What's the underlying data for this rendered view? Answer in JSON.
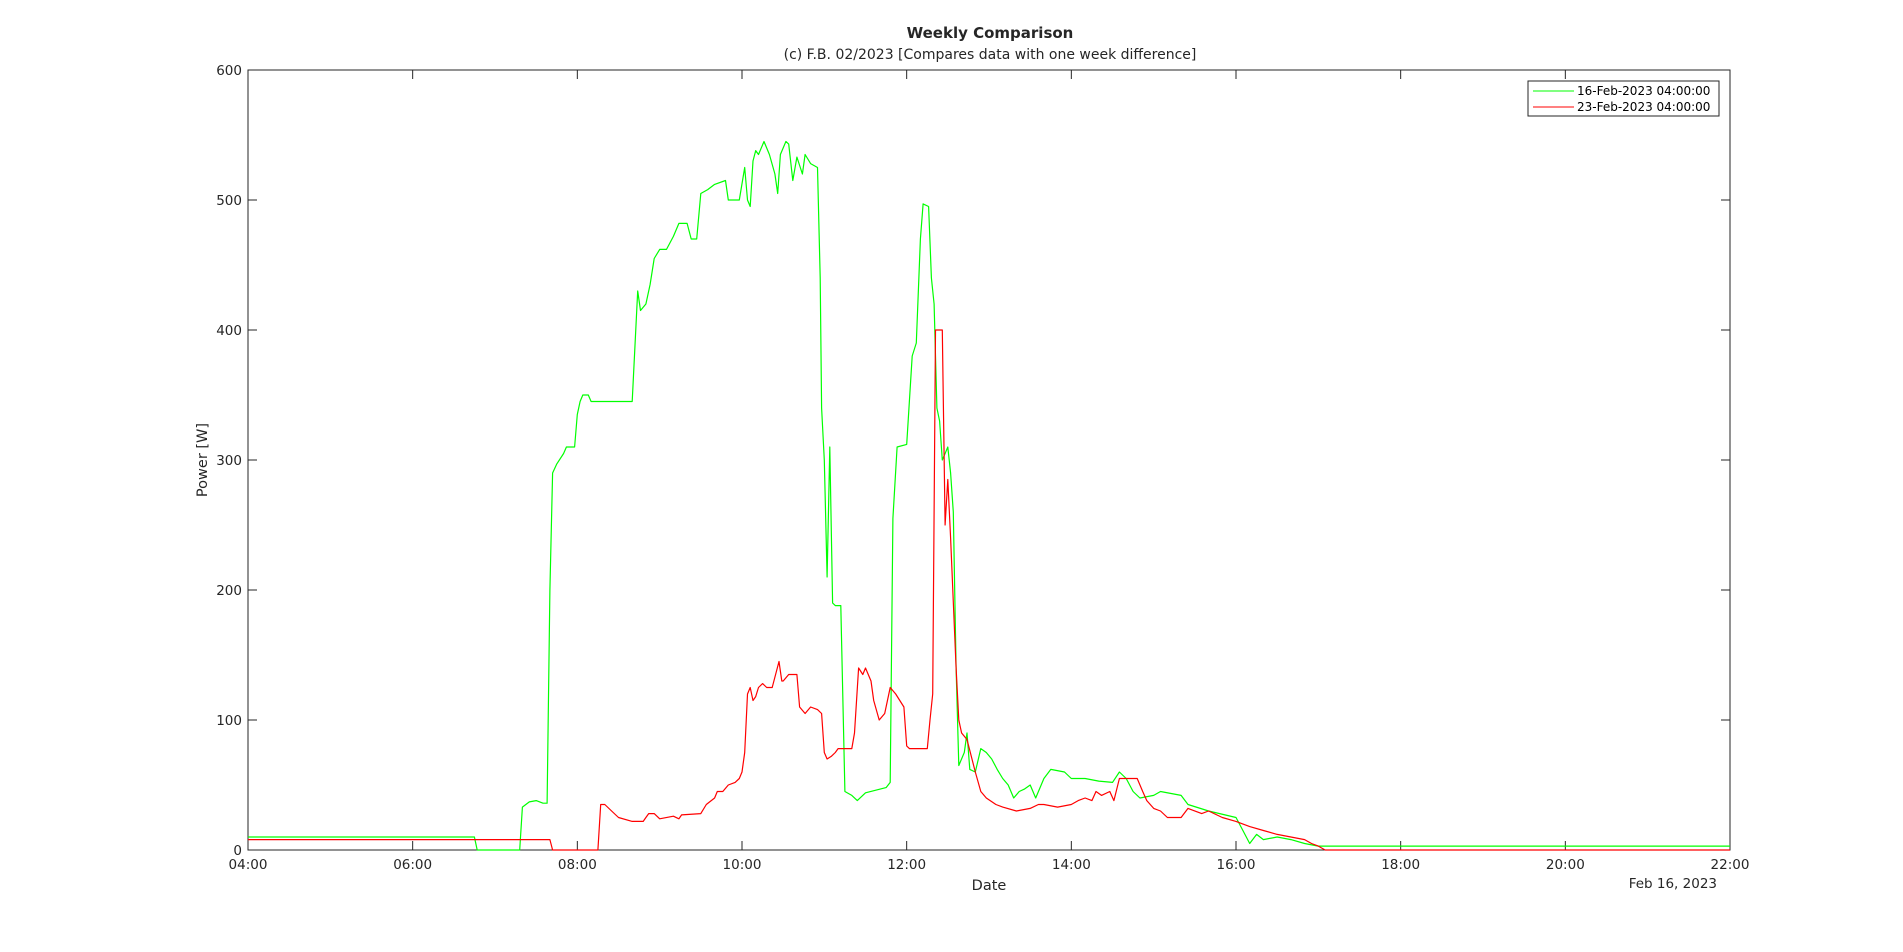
{
  "chart_data": {
    "type": "line",
    "title": "Weekly Comparison",
    "subtitle": "(c) F.B. 02/2023 [Compares data with one week difference]",
    "xlabel": "Date",
    "ylabel": "Power [W]",
    "date_label": "Feb 16, 2023",
    "xlim": [
      "04:00",
      "22:00"
    ],
    "ylim": [
      0,
      600
    ],
    "x_ticks": [
      "04:00",
      "06:00",
      "08:00",
      "10:00",
      "12:00",
      "14:00",
      "16:00",
      "18:00",
      "20:00",
      "22:00"
    ],
    "y_ticks": [
      0,
      100,
      200,
      300,
      400,
      500,
      600
    ],
    "grid": false,
    "legend_position": "top-right",
    "series": [
      {
        "name": "16-Feb-2023 04:00:00",
        "color": "#00ff00",
        "points": [
          [
            "04:00",
            10
          ],
          [
            "06:45",
            10
          ],
          [
            "06:47",
            0
          ],
          [
            "07:18",
            0
          ],
          [
            "07:20",
            33
          ],
          [
            "07:25",
            37
          ],
          [
            "07:30",
            38
          ],
          [
            "07:35",
            36
          ],
          [
            "07:38",
            36
          ],
          [
            "07:40",
            200
          ],
          [
            "07:42",
            290
          ],
          [
            "07:45",
            297
          ],
          [
            "07:50",
            305
          ],
          [
            "07:52",
            310
          ],
          [
            "07:58",
            310
          ],
          [
            "08:00",
            335
          ],
          [
            "08:02",
            345
          ],
          [
            "08:04",
            350
          ],
          [
            "08:08",
            350
          ],
          [
            "08:10",
            345
          ],
          [
            "08:40",
            345
          ],
          [
            "08:44",
            430
          ],
          [
            "08:46",
            415
          ],
          [
            "08:50",
            420
          ],
          [
            "08:53",
            435
          ],
          [
            "08:56",
            455
          ],
          [
            "09:00",
            462
          ],
          [
            "09:05",
            462
          ],
          [
            "09:10",
            472
          ],
          [
            "09:14",
            482
          ],
          [
            "09:20",
            482
          ],
          [
            "09:23",
            470
          ],
          [
            "09:27",
            470
          ],
          [
            "09:30",
            505
          ],
          [
            "09:35",
            508
          ],
          [
            "09:40",
            512
          ],
          [
            "09:48",
            515
          ],
          [
            "09:50",
            500
          ],
          [
            "09:58",
            500
          ],
          [
            "10:02",
            525
          ],
          [
            "10:04",
            500
          ],
          [
            "10:06",
            495
          ],
          [
            "10:08",
            530
          ],
          [
            "10:10",
            538
          ],
          [
            "10:12",
            535
          ],
          [
            "10:16",
            545
          ],
          [
            "10:20",
            535
          ],
          [
            "10:24",
            520
          ],
          [
            "10:26",
            505
          ],
          [
            "10:28",
            535
          ],
          [
            "10:32",
            545
          ],
          [
            "10:34",
            543
          ],
          [
            "10:37",
            515
          ],
          [
            "10:40",
            533
          ],
          [
            "10:44",
            520
          ],
          [
            "10:46",
            535
          ],
          [
            "10:50",
            528
          ],
          [
            "10:55",
            525
          ],
          [
            "10:57",
            440
          ],
          [
            "10:58",
            340
          ],
          [
            "11:00",
            300
          ],
          [
            "11:02",
            210
          ],
          [
            "11:04",
            310
          ],
          [
            "11:06",
            190
          ],
          [
            "11:08",
            188
          ],
          [
            "11:12",
            188
          ],
          [
            "11:15",
            45
          ],
          [
            "11:20",
            42
          ],
          [
            "11:24",
            38
          ],
          [
            "11:30",
            44
          ],
          [
            "11:45",
            48
          ],
          [
            "11:48",
            52
          ],
          [
            "11:50",
            255
          ],
          [
            "11:53",
            310
          ],
          [
            "12:00",
            312
          ],
          [
            "12:04",
            380
          ],
          [
            "12:07",
            390
          ],
          [
            "12:10",
            470
          ],
          [
            "12:12",
            497
          ],
          [
            "12:16",
            495
          ],
          [
            "12:18",
            440
          ],
          [
            "12:20",
            420
          ],
          [
            "12:22",
            340
          ],
          [
            "12:24",
            330
          ],
          [
            "12:26",
            300
          ],
          [
            "12:28",
            305
          ],
          [
            "12:30",
            310
          ],
          [
            "12:32",
            290
          ],
          [
            "12:34",
            260
          ],
          [
            "12:36",
            140
          ],
          [
            "12:38",
            65
          ],
          [
            "12:42",
            75
          ],
          [
            "12:44",
            90
          ],
          [
            "12:46",
            62
          ],
          [
            "12:50",
            60
          ],
          [
            "12:54",
            78
          ],
          [
            "12:58",
            75
          ],
          [
            "13:02",
            70
          ],
          [
            "13:06",
            62
          ],
          [
            "13:10",
            55
          ],
          [
            "13:14",
            50
          ],
          [
            "13:18",
            40
          ],
          [
            "13:22",
            45
          ],
          [
            "13:26",
            47
          ],
          [
            "13:30",
            50
          ],
          [
            "13:34",
            40
          ],
          [
            "13:40",
            55
          ],
          [
            "13:45",
            62
          ],
          [
            "13:55",
            60
          ],
          [
            "14:00",
            55
          ],
          [
            "14:10",
            55
          ],
          [
            "14:20",
            53
          ],
          [
            "14:30",
            52
          ],
          [
            "14:35",
            60
          ],
          [
            "14:40",
            55
          ],
          [
            "14:45",
            45
          ],
          [
            "14:50",
            40
          ],
          [
            "15:00",
            42
          ],
          [
            "15:05",
            45
          ],
          [
            "15:20",
            42
          ],
          [
            "15:25",
            35
          ],
          [
            "15:40",
            30
          ],
          [
            "16:00",
            25
          ],
          [
            "16:05",
            15
          ],
          [
            "16:10",
            5
          ],
          [
            "16:15",
            12
          ],
          [
            "16:20",
            8
          ],
          [
            "16:30",
            10
          ],
          [
            "16:40",
            8
          ],
          [
            "16:50",
            5
          ],
          [
            "17:00",
            3
          ],
          [
            "22:00",
            3
          ]
        ]
      },
      {
        "name": "23-Feb-2023 04:00:00",
        "color": "#ff0000",
        "points": [
          [
            "04:00",
            8
          ],
          [
            "07:40",
            8
          ],
          [
            "07:42",
            0
          ],
          [
            "08:15",
            0
          ],
          [
            "08:17",
            35
          ],
          [
            "08:20",
            35
          ],
          [
            "08:25",
            30
          ],
          [
            "08:30",
            25
          ],
          [
            "08:40",
            22
          ],
          [
            "08:48",
            22
          ],
          [
            "08:50",
            25
          ],
          [
            "08:52",
            28
          ],
          [
            "08:56",
            28
          ],
          [
            "09:00",
            24
          ],
          [
            "09:10",
            26
          ],
          [
            "09:14",
            24
          ],
          [
            "09:16",
            27
          ],
          [
            "09:30",
            28
          ],
          [
            "09:34",
            35
          ],
          [
            "09:40",
            40
          ],
          [
            "09:42",
            45
          ],
          [
            "09:46",
            45
          ],
          [
            "09:50",
            50
          ],
          [
            "09:55",
            52
          ],
          [
            "09:58",
            55
          ],
          [
            "10:00",
            60
          ],
          [
            "10:02",
            75
          ],
          [
            "10:04",
            120
          ],
          [
            "10:06",
            125
          ],
          [
            "10:08",
            115
          ],
          [
            "10:10",
            118
          ],
          [
            "10:12",
            125
          ],
          [
            "10:15",
            128
          ],
          [
            "10:18",
            125
          ],
          [
            "10:22",
            125
          ],
          [
            "10:27",
            145
          ],
          [
            "10:29,",
            130
          ],
          [
            "10:30",
            130
          ],
          [
            "10:34",
            135
          ],
          [
            "10:40",
            135
          ],
          [
            "10:42",
            110
          ],
          [
            "10:46",
            105
          ],
          [
            "10:50",
            110
          ],
          [
            "10:55",
            108
          ],
          [
            "10:58",
            105
          ],
          [
            "11:00",
            75
          ],
          [
            "11:02",
            70
          ],
          [
            "11:05",
            72
          ],
          [
            "11:08",
            75
          ],
          [
            "11:10",
            78
          ],
          [
            "11:20",
            78
          ],
          [
            "11:22",
            90
          ],
          [
            "11:25",
            140
          ],
          [
            "11:28",
            135
          ],
          [
            "11:30",
            140
          ],
          [
            "11:34",
            130
          ],
          [
            "11:36",
            115
          ],
          [
            "11:40",
            100
          ],
          [
            "11:44",
            105
          ],
          [
            "11:48",
            125
          ],
          [
            "11:52",
            120
          ],
          [
            "11:55",
            115
          ],
          [
            "11:58",
            110
          ],
          [
            "12:00",
            80
          ],
          [
            "12:02",
            78
          ],
          [
            "12:15",
            78
          ],
          [
            "12:17",
            100
          ],
          [
            "12:19",
            120
          ],
          [
            "12:21",
            400
          ],
          [
            "12:26",
            400
          ],
          [
            "12:28",
            250
          ],
          [
            "12:30",
            285
          ],
          [
            "12:32",
            240
          ],
          [
            "12:36",
            140
          ],
          [
            "12:38",
            100
          ],
          [
            "12:40",
            90
          ],
          [
            "12:44",
            85
          ],
          [
            "12:50",
            60
          ],
          [
            "12:54",
            45
          ],
          [
            "12:58",
            40
          ],
          [
            "13:05",
            35
          ],
          [
            "13:10",
            33
          ],
          [
            "13:20",
            30
          ],
          [
            "13:30",
            32
          ],
          [
            "13:36",
            35
          ],
          [
            "13:40",
            35
          ],
          [
            "13:50",
            33
          ],
          [
            "14:00",
            35
          ],
          [
            "14:05",
            38
          ],
          [
            "14:10",
            40
          ],
          [
            "14:15",
            38
          ],
          [
            "14:18",
            45
          ],
          [
            "14:22",
            42
          ],
          [
            "14:28",
            45
          ],
          [
            "14:31",
            38
          ],
          [
            "14:35",
            55
          ],
          [
            "14:48",
            55
          ],
          [
            "14:52",
            45
          ],
          [
            "14:55",
            38
          ],
          [
            "15:00",
            32
          ],
          [
            "15:05",
            30
          ],
          [
            "15:10",
            25
          ],
          [
            "15:20",
            25
          ],
          [
            "15:25",
            32
          ],
          [
            "15:35",
            28
          ],
          [
            "15:40",
            30
          ],
          [
            "15:50",
            25
          ],
          [
            "16:00",
            22
          ],
          [
            "16:10",
            18
          ],
          [
            "16:20",
            15
          ],
          [
            "16:30",
            12
          ],
          [
            "16:40",
            10
          ],
          [
            "16:50",
            8
          ],
          [
            "16:55",
            5
          ],
          [
            "17:00",
            3
          ],
          [
            "17:05",
            0
          ],
          [
            "22:00",
            0
          ]
        ]
      }
    ]
  }
}
